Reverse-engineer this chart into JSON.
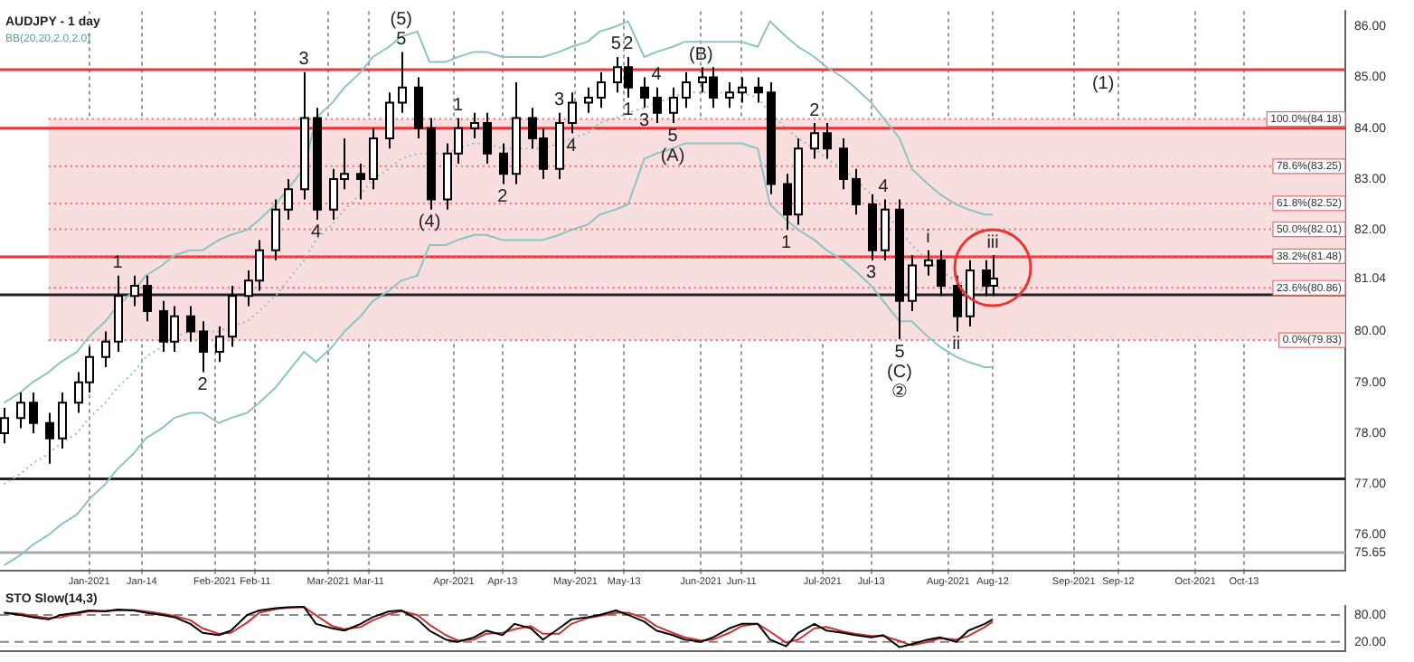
{
  "chart_data": [
    {
      "type": "candlestick",
      "title": "AUDJPY - 1 day",
      "subtitle": "BB(20,20,2.0,2.0)",
      "colors": [
        "#ffffff",
        "#ffffff",
        "#000000",
        "#000000",
        "#ffffff",
        "#ffffff",
        "#ffffff",
        "#ffffff",
        "#ffffff",
        "#ffffff",
        "#000000",
        "#000000",
        "#ffffff",
        "#000000",
        "#000000",
        "#ffffff",
        "#ffffff",
        "#ffffff",
        "#ffffff",
        "#ffffff",
        "#ffffff",
        "#ffffff",
        "#000000",
        "#ffffff",
        "#ffffff",
        "#000000",
        "#ffffff",
        "#ffffff",
        "#ffffff",
        "#000000",
        "#000000",
        "#ffffff",
        "#ffffff",
        "#ffffff",
        "#000000",
        "#000000",
        "#ffffff",
        "#000000",
        "#000000",
        "#ffffff",
        "#ffffff",
        "#ffffff",
        "#ffffff",
        "#ffffff",
        "#000000",
        "#000000",
        "#000000",
        "#ffffff",
        "#ffffff",
        "#ffffff",
        "#000000",
        "#ffffff",
        "#ffffff",
        "#000000",
        "#000000",
        "#000000",
        "#ffffff",
        "#ffffff",
        "#000000",
        "#000000",
        "#000000",
        "#000000",
        "#ffffff",
        "#000000",
        "#ffffff",
        "#ffffff",
        "#000000",
        "#000000",
        "#ffffff",
        "#000000",
        "#ffffff"
      ],
      "x": [
        "2020-12-11",
        "2020-12-15",
        "2020-12-18",
        "2020-12-22",
        "2020-12-25",
        "2020-12-29",
        "2021-01-01",
        "2021-01-05",
        "2021-01-08",
        "2021-01-12",
        "2021-01-15",
        "2021-01-19",
        "2021-01-22",
        "2021-01-26",
        "2021-01-29",
        "2021-02-02",
        "2021-02-05",
        "2021-02-09",
        "2021-02-12",
        "2021-02-16",
        "2021-02-19",
        "2021-02-23",
        "2021-02-26",
        "2021-03-02",
        "2021-03-05",
        "2021-03-09",
        "2021-03-12",
        "2021-03-16",
        "2021-03-19",
        "2021-03-23",
        "2021-03-26",
        "2021-03-30",
        "2021-04-02",
        "2021-04-06",
        "2021-04-09",
        "2021-04-13",
        "2021-04-16",
        "2021-04-20",
        "2021-04-23",
        "2021-04-27",
        "2021-04-30",
        "2021-05-04",
        "2021-05-07",
        "2021-05-11",
        "2021-05-14",
        "2021-05-18",
        "2021-05-21",
        "2021-05-25",
        "2021-05-28",
        "2021-06-01",
        "2021-06-04",
        "2021-06-08",
        "2021-06-11",
        "2021-06-15",
        "2021-06-18",
        "2021-06-22",
        "2021-06-25",
        "2021-06-29",
        "2021-07-02",
        "2021-07-06",
        "2021-07-09",
        "2021-07-13",
        "2021-07-16",
        "2021-07-20",
        "2021-07-23",
        "2021-07-27",
        "2021-07-30",
        "2021-08-03",
        "2021-08-06",
        "2021-08-10",
        "2021-08-12"
      ],
      "ohlc": [
        [
          78.0,
          78.5,
          77.8,
          78.3
        ],
        [
          78.3,
          78.8,
          78.1,
          78.6
        ],
        [
          78.6,
          78.8,
          78.0,
          78.2
        ],
        [
          78.2,
          78.4,
          77.4,
          77.9
        ],
        [
          77.9,
          78.8,
          77.7,
          78.6
        ],
        [
          78.6,
          79.2,
          78.4,
          79.0
        ],
        [
          79.0,
          79.7,
          78.8,
          79.5
        ],
        [
          79.5,
          80.0,
          79.3,
          79.8
        ],
        [
          79.8,
          81.1,
          79.6,
          80.7
        ],
        [
          80.7,
          81.1,
          80.5,
          80.9
        ],
        [
          80.9,
          81.1,
          80.2,
          80.4
        ],
        [
          80.4,
          80.6,
          79.6,
          79.8
        ],
        [
          79.8,
          80.5,
          79.6,
          80.3
        ],
        [
          80.3,
          80.5,
          79.8,
          80.0
        ],
        [
          80.0,
          80.2,
          79.2,
          79.6
        ],
        [
          79.6,
          80.1,
          79.4,
          79.9
        ],
        [
          79.9,
          80.9,
          79.7,
          80.7
        ],
        [
          80.7,
          81.2,
          80.5,
          81.0
        ],
        [
          81.0,
          81.8,
          80.8,
          81.6
        ],
        [
          81.6,
          82.6,
          81.4,
          82.4
        ],
        [
          82.4,
          83.0,
          82.2,
          82.8
        ],
        [
          82.8,
          85.1,
          82.6,
          84.2
        ],
        [
          84.2,
          84.4,
          82.2,
          82.4
        ],
        [
          82.4,
          83.2,
          82.2,
          83.0
        ],
        [
          83.0,
          83.8,
          82.8,
          83.1
        ],
        [
          83.1,
          83.3,
          82.6,
          83.0
        ],
        [
          83.0,
          84.0,
          82.8,
          83.8
        ],
        [
          83.8,
          84.7,
          83.6,
          84.5
        ],
        [
          84.5,
          85.5,
          84.3,
          84.8
        ],
        [
          84.8,
          85.0,
          83.8,
          84.0
        ],
        [
          84.0,
          84.2,
          82.4,
          82.6
        ],
        [
          82.6,
          83.7,
          82.4,
          83.5
        ],
        [
          83.5,
          84.2,
          83.3,
          84.0
        ],
        [
          84.0,
          84.3,
          83.8,
          84.1
        ],
        [
          84.1,
          84.3,
          83.3,
          83.5
        ],
        [
          83.5,
          83.7,
          82.9,
          83.1
        ],
        [
          83.1,
          84.9,
          82.9,
          84.2
        ],
        [
          84.2,
          84.4,
          83.6,
          83.8
        ],
        [
          83.8,
          84.0,
          83.0,
          83.2
        ],
        [
          83.2,
          84.3,
          83.0,
          84.1
        ],
        [
          84.1,
          84.7,
          83.9,
          84.5
        ],
        [
          84.5,
          84.8,
          84.3,
          84.6
        ],
        [
          84.6,
          85.1,
          84.4,
          84.9
        ],
        [
          84.9,
          85.4,
          84.7,
          85.2
        ],
        [
          85.2,
          85.4,
          84.6,
          84.8
        ],
        [
          84.8,
          85.0,
          84.4,
          84.6
        ],
        [
          84.6,
          84.8,
          84.1,
          84.3
        ],
        [
          84.3,
          84.8,
          84.1,
          84.6
        ],
        [
          84.6,
          85.1,
          84.4,
          84.9
        ],
        [
          84.9,
          85.2,
          84.7,
          85.0
        ],
        [
          85.0,
          85.2,
          84.4,
          84.6
        ],
        [
          84.6,
          84.9,
          84.4,
          84.7
        ],
        [
          84.7,
          85.0,
          84.5,
          84.8
        ],
        [
          84.8,
          85.0,
          84.5,
          84.7
        ],
        [
          84.7,
          84.9,
          82.7,
          82.9
        ],
        [
          82.9,
          83.1,
          82.0,
          82.3
        ],
        [
          82.3,
          83.8,
          82.1,
          83.6
        ],
        [
          83.6,
          84.1,
          83.4,
          83.9
        ],
        [
          83.9,
          84.1,
          83.4,
          83.6
        ],
        [
          83.6,
          83.8,
          82.8,
          83.0
        ],
        [
          83.0,
          83.2,
          82.3,
          82.5
        ],
        [
          82.5,
          82.7,
          81.4,
          81.6
        ],
        [
          81.6,
          82.6,
          81.4,
          82.4
        ],
        [
          82.4,
          82.6,
          79.85,
          80.6
        ],
        [
          80.6,
          81.5,
          80.4,
          81.3
        ],
        [
          81.3,
          81.6,
          81.1,
          81.4
        ],
        [
          81.4,
          81.6,
          80.7,
          80.9
        ],
        [
          80.9,
          81.1,
          80.0,
          80.3
        ],
        [
          80.3,
          81.4,
          80.1,
          81.2
        ],
        [
          81.2,
          81.4,
          80.7,
          80.9
        ],
        [
          80.9,
          81.5,
          80.7,
          81.04
        ]
      ],
      "series": [
        {
          "type": "line",
          "color": "#8cc4c4",
          "values": [
            78.6,
            78.8,
            79.0,
            79.2,
            79.4,
            79.6,
            79.9,
            80.2,
            80.5,
            80.8,
            81.1,
            81.3,
            81.5,
            81.6,
            81.6,
            81.8,
            81.9,
            82.0,
            82.2,
            82.5,
            82.8,
            83.2,
            84.2,
            84.5,
            84.8,
            85.1,
            85.4,
            85.6,
            85.8,
            85.9,
            85.3,
            85.3,
            85.4,
            85.5,
            85.5,
            85.4,
            85.4,
            85.4,
            85.4,
            85.5,
            85.6,
            85.7,
            85.9,
            86.0,
            86.1,
            85.4,
            85.5,
            85.6,
            85.7,
            85.7,
            85.7,
            85.7,
            85.7,
            85.6,
            86.1,
            85.8,
            85.6,
            85.4,
            85.2,
            85.0,
            84.8,
            84.5,
            84.2,
            83.8,
            83.2,
            82.9,
            82.7,
            82.5,
            82.4,
            82.3,
            82.3
          ]
        },
        {
          "type": "line",
          "color": "#8cc4c4",
          "line_style": "dotted",
          "values": [
            77.0,
            77.2,
            77.4,
            77.6,
            77.8,
            78.0,
            78.3,
            78.6,
            78.9,
            79.2,
            79.5,
            79.7,
            79.9,
            80.0,
            80.0,
            80.0,
            80.1,
            80.2,
            80.4,
            80.7,
            81.0,
            81.4,
            81.8,
            82.1,
            82.4,
            82.7,
            83.0,
            83.2,
            83.4,
            83.5,
            83.5,
            83.5,
            83.6,
            83.7,
            83.7,
            83.6,
            83.6,
            83.6,
            83.6,
            83.7,
            83.8,
            83.9,
            84.1,
            84.2,
            84.3,
            84.4,
            84.5,
            84.6,
            84.7,
            84.7,
            84.7,
            84.7,
            84.7,
            84.6,
            84.3,
            84.0,
            83.8,
            83.6,
            83.4,
            83.2,
            83.0,
            82.7,
            82.4,
            82.0,
            81.7,
            81.4,
            81.2,
            81.0,
            80.9,
            80.8,
            80.8
          ]
        },
        {
          "type": "line",
          "color": "#8cc4c4",
          "values": [
            75.4,
            75.6,
            75.8,
            76.0,
            76.2,
            76.4,
            76.7,
            77.0,
            77.3,
            77.6,
            77.9,
            78.1,
            78.3,
            78.4,
            78.4,
            78.2,
            78.3,
            78.4,
            78.6,
            78.9,
            79.2,
            79.6,
            79.4,
            79.7,
            80.0,
            80.3,
            80.6,
            80.8,
            81.0,
            81.1,
            81.7,
            81.7,
            81.8,
            81.9,
            81.9,
            81.8,
            81.8,
            81.8,
            81.8,
            81.9,
            82.0,
            82.1,
            82.3,
            82.4,
            82.5,
            83.4,
            83.5,
            83.6,
            83.7,
            83.7,
            83.7,
            83.7,
            83.7,
            83.6,
            82.5,
            82.2,
            82.0,
            81.8,
            81.6,
            81.4,
            81.2,
            80.9,
            80.6,
            80.2,
            80.2,
            79.9,
            79.7,
            79.5,
            79.4,
            79.3,
            79.3
          ]
        }
      ],
      "xlim": [
        "2020-12-10",
        "2021-11-07"
      ],
      "xticks": [
        {
          "value": "2021-01-01",
          "label": "Jan-2021"
        },
        {
          "value": "2021-01-14",
          "label": "Jan-14"
        },
        {
          "value": "2021-02-01",
          "label": "Feb-2021"
        },
        {
          "value": "2021-02-11",
          "label": "Feb-11"
        },
        {
          "value": "2021-03-01",
          "label": "Mar-2021"
        },
        {
          "value": "2021-03-11",
          "label": "Mar-11"
        },
        {
          "value": "2021-04-01",
          "label": "Apr-2021"
        },
        {
          "value": "2021-04-13",
          "label": "Apr-13"
        },
        {
          "value": "2021-05-01",
          "label": "May-2021"
        },
        {
          "value": "2021-05-13",
          "label": "May-13"
        },
        {
          "value": "2021-06-01",
          "label": "Jun-2021"
        },
        {
          "value": "2021-06-11",
          "label": "Jun-11"
        },
        {
          "value": "2021-07-01",
          "label": "Jul-2021"
        },
        {
          "value": "2021-07-13",
          "label": "Jul-13"
        },
        {
          "value": "2021-08-01",
          "label": "Aug-2021"
        },
        {
          "value": "2021-08-12",
          "label": "Aug-12"
        },
        {
          "value": "2021-09-01",
          "label": "Sep-2021"
        },
        {
          "value": "2021-09-12",
          "label": "Sep-12"
        },
        {
          "value": "2021-10-01",
          "label": "Oct-2021"
        },
        {
          "value": "2021-10-13",
          "label": "Oct-13"
        }
      ],
      "ylim": [
        75.3,
        86.3
      ],
      "yticks": [
        {
          "value": 75.65,
          "label": "75.65"
        },
        {
          "value": 76,
          "label": "76.00"
        },
        {
          "value": 77,
          "label": "77.00"
        },
        {
          "value": 78,
          "label": "78.00"
        },
        {
          "value": 79,
          "label": "79.00"
        },
        {
          "value": 80,
          "label": "80.00"
        },
        {
          "value": 81.04,
          "label": "81.04"
        },
        {
          "value": 82,
          "label": "82.00"
        },
        {
          "value": 83,
          "label": "83.00"
        },
        {
          "value": 84,
          "label": "84.00"
        },
        {
          "value": 85,
          "label": "85.00"
        },
        {
          "value": 86,
          "label": "86.00"
        }
      ],
      "grid": "x",
      "bands": [
        {
          "axis": "y",
          "from": 79.83,
          "to": 84.18,
          "color": "#f8dede"
        }
      ],
      "ref_lines": [
        {
          "axis": "y",
          "value": 85.15,
          "color": "#ee3333"
        },
        {
          "axis": "y",
          "value": 84.0,
          "color": "#ee3333"
        },
        {
          "axis": "y",
          "value": 81.47,
          "color": "#ee3333"
        },
        {
          "axis": "y",
          "value": 80.72,
          "color": "#222222"
        },
        {
          "axis": "y",
          "value": 77.1,
          "color": "#222222"
        },
        {
          "axis": "y",
          "value": 75.65,
          "color": "#aaaaaa"
        },
        {
          "axis": "y",
          "value": 84.18,
          "label": "100.0%(84.18)",
          "color": "#e07070",
          "line_style": "dotted"
        },
        {
          "axis": "y",
          "value": 83.25,
          "label": "78.6%(83.25)",
          "color": "#e07070",
          "line_style": "dotted"
        },
        {
          "axis": "y",
          "value": 82.52,
          "label": "61.8%(82.52)",
          "color": "#e07070",
          "line_style": "dotted"
        },
        {
          "axis": "y",
          "value": 82.01,
          "label": "50.0%(82.01)",
          "color": "#e07070",
          "line_style": "dotted"
        },
        {
          "axis": "y",
          "value": 81.48,
          "label": "38.2%(81.48)",
          "color": "#e07070",
          "line_style": "dotted"
        },
        {
          "axis": "y",
          "value": 80.86,
          "label": "23.6%(80.86)",
          "color": "#e07070",
          "line_style": "dotted"
        },
        {
          "axis": "y",
          "value": 79.83,
          "label": "0.0%(79.83)",
          "color": "#e07070",
          "line_style": "dotted"
        }
      ],
      "annotations": [
        {
          "text": "1",
          "x": "2021-01-08",
          "y": 81.1
        },
        {
          "text": "2",
          "x": "2021-01-29",
          "y": 79.2
        },
        {
          "text": "3",
          "x": "2021-02-23",
          "y": 85.1
        },
        {
          "text": "4",
          "x": "2021-02-26",
          "y": 82.2
        },
        {
          "text": "5",
          "x": "2021-03-19",
          "y": 85.5
        },
        {
          "text": "(5)",
          "x": "2021-03-19",
          "y": 85.5
        },
        {
          "text": "(4)",
          "x": "2021-03-26",
          "y": 82.4
        },
        {
          "text": "1",
          "x": "2021-04-02",
          "y": 84.2
        },
        {
          "text": "2",
          "x": "2021-04-13",
          "y": 82.9
        },
        {
          "text": "3",
          "x": "2021-04-27",
          "y": 84.3
        },
        {
          "text": "4",
          "x": "2021-04-30",
          "y": 83.9
        },
        {
          "text": "5",
          "x": "2021-05-11",
          "y": 85.4
        },
        {
          "text": "2",
          "x": "2021-05-14",
          "y": 85.4
        },
        {
          "text": "1",
          "x": "2021-05-14",
          "y": 84.6
        },
        {
          "text": "3",
          "x": "2021-05-18",
          "y": 84.4
        },
        {
          "text": "4",
          "x": "2021-05-21",
          "y": 84.8
        },
        {
          "text": "5",
          "x": "2021-05-25",
          "y": 84.1
        },
        {
          "text": "(A)",
          "x": "2021-05-25",
          "y": 84.1
        },
        {
          "text": "(B)",
          "x": "2021-06-01",
          "y": 85.2
        },
        {
          "text": "1",
          "x": "2021-06-22",
          "y": 82.0
        },
        {
          "text": "2",
          "x": "2021-06-29",
          "y": 84.1
        },
        {
          "text": "3",
          "x": "2021-07-13",
          "y": 81.4
        },
        {
          "text": "4",
          "x": "2021-07-16",
          "y": 82.6
        },
        {
          "text": "5",
          "x": "2021-07-20",
          "y": 79.85
        },
        {
          "text": "(C)",
          "x": "2021-07-20",
          "y": 79.85
        },
        {
          "text": "②",
          "x": "2021-07-20",
          "y": 79.85
        },
        {
          "text": "i",
          "x": "2021-07-27",
          "y": 81.6
        },
        {
          "text": "ii",
          "x": "2021-08-03",
          "y": 80.0
        },
        {
          "text": "iii",
          "x": "2021-08-12",
          "y": 81.5
        },
        "(1)"
      ]
    },
    {
      "type": "line",
      "title": "STO Slow(14,3)",
      "x": [
        "2020-12-11",
        "2020-12-15",
        "2020-12-18",
        "2020-12-22",
        "2020-12-25",
        "2020-12-29",
        "2021-01-01",
        "2021-01-05",
        "2021-01-08",
        "2021-01-12",
        "2021-01-15",
        "2021-01-19",
        "2021-01-22",
        "2021-01-26",
        "2021-01-29",
        "2021-02-02",
        "2021-02-05",
        "2021-02-09",
        "2021-02-12",
        "2021-02-16",
        "2021-02-19",
        "2021-02-23",
        "2021-02-26",
        "2021-03-02",
        "2021-03-05",
        "2021-03-09",
        "2021-03-12",
        "2021-03-16",
        "2021-03-19",
        "2021-03-23",
        "2021-03-26",
        "2021-03-30",
        "2021-04-02",
        "2021-04-06",
        "2021-04-09",
        "2021-04-13",
        "2021-04-16",
        "2021-04-20",
        "2021-04-23",
        "2021-04-27",
        "2021-04-30",
        "2021-05-04",
        "2021-05-07",
        "2021-05-11",
        "2021-05-14",
        "2021-05-18",
        "2021-05-21",
        "2021-05-25",
        "2021-05-28",
        "2021-06-01",
        "2021-06-04",
        "2021-06-08",
        "2021-06-11",
        "2021-06-15",
        "2021-06-18",
        "2021-06-22",
        "2021-06-25",
        "2021-06-29",
        "2021-07-02",
        "2021-07-06",
        "2021-07-09",
        "2021-07-13",
        "2021-07-16",
        "2021-07-20",
        "2021-07-23",
        "2021-07-27",
        "2021-07-30",
        "2021-08-03",
        "2021-08-06",
        "2021-08-10",
        "2021-08-12"
      ],
      "series": [
        {
          "color": "#000000",
          "values": [
            85,
            80,
            75,
            70,
            80,
            85,
            90,
            88,
            92,
            90,
            85,
            80,
            75,
            60,
            40,
            35,
            45,
            80,
            90,
            95,
            97,
            98,
            60,
            50,
            45,
            60,
            75,
            88,
            90,
            70,
            45,
            25,
            20,
            30,
            45,
            35,
            60,
            50,
            25,
            50,
            70,
            75,
            80,
            90,
            80,
            65,
            45,
            35,
            25,
            20,
            30,
            50,
            60,
            60,
            25,
            10,
            40,
            60,
            45,
            40,
            35,
            30,
            35,
            8,
            15,
            25,
            30,
            20,
            45,
            60,
            70
          ]
        },
        {
          "color": "#cc3333",
          "values": [
            85,
            83,
            78,
            73,
            75,
            83,
            88,
            89,
            90,
            91,
            88,
            83,
            78,
            68,
            50,
            38,
            40,
            63,
            85,
            93,
            96,
            98,
            79,
            55,
            48,
            53,
            68,
            82,
            89,
            80,
            58,
            35,
            23,
            25,
            38,
            40,
            48,
            55,
            38,
            38,
            60,
            73,
            78,
            85,
            85,
            73,
            55,
            40,
            30,
            23,
            25,
            40,
            55,
            60,
            43,
            18,
            25,
            50,
            53,
            43,
            38,
            33,
            33,
            22,
            12,
            20,
            28,
            25,
            33,
            53,
            65
          ]
        }
      ],
      "xlim": [
        "2020-12-10",
        "2021-11-07"
      ],
      "ylim": [
        0,
        100
      ],
      "yticks": [
        {
          "value": 20,
          "label": "20.00"
        },
        {
          "value": 80,
          "label": "80.00"
        }
      ],
      "tick_labels": "y",
      "grid": "x",
      "ref_lines": [
        {
          "axis": "y",
          "value": 80,
          "color": "#888888",
          "line_style": "dashed"
        },
        {
          "axis": "y",
          "value": 20,
          "color": "#888888",
          "line_style": "dashed"
        }
      ]
    }
  ]
}
